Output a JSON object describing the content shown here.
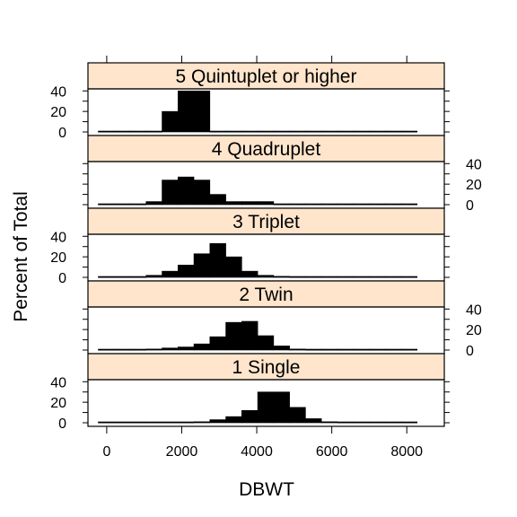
{
  "chart_data": {
    "type": "histogram",
    "xlabel": "DBWT",
    "ylabel": "Percent of Total",
    "xlim": [
      -500,
      9000
    ],
    "ylim": [
      0,
      42
    ],
    "x_ticks": [
      0,
      2000,
      4000,
      6000,
      8000
    ],
    "y_ticks": [
      0,
      20,
      40
    ],
    "bin_width": 425,
    "bin_start": -225,
    "n_bins": 20,
    "strip_color": "#ffe5cc",
    "bar_color": "#000000",
    "panels": [
      {
        "label": "5 Quintuplet or higher",
        "values": [
          0,
          0,
          0,
          0,
          20,
          40,
          40,
          0,
          0,
          0,
          0,
          0,
          0,
          0,
          0,
          0,
          0,
          0,
          0,
          0
        ]
      },
      {
        "label": "4 Quadruplet",
        "values": [
          0,
          0,
          0,
          3,
          24,
          27,
          24,
          10,
          3,
          3,
          3,
          0,
          0,
          0,
          0,
          0,
          0,
          0,
          0,
          0
        ]
      },
      {
        "label": "3 Triplet",
        "values": [
          0,
          0,
          0,
          2,
          6,
          12,
          23,
          33,
          20,
          6,
          2,
          1,
          0,
          0,
          0,
          0,
          0,
          0,
          0,
          0
        ]
      },
      {
        "label": "2 Twin",
        "values": [
          0,
          0,
          0,
          1,
          2,
          3,
          6,
          13,
          27,
          28,
          14,
          4,
          1,
          0,
          0,
          0,
          0,
          0,
          0,
          0
        ]
      },
      {
        "label": "1 Single",
        "values": [
          0,
          0,
          0,
          0,
          0,
          0,
          1,
          3,
          6,
          12,
          30,
          30,
          15,
          4,
          1,
          0,
          0,
          0,
          0,
          0
        ]
      }
    ]
  }
}
